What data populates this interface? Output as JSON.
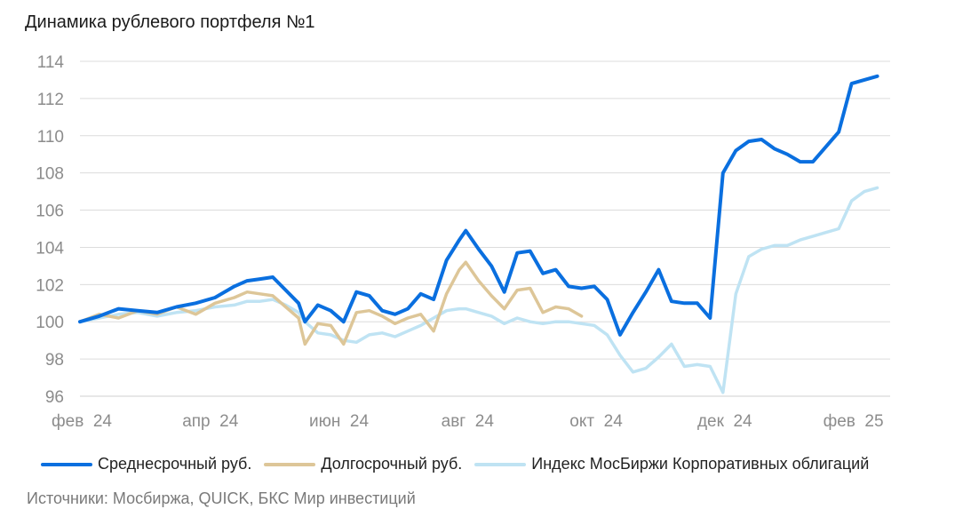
{
  "chart_data": {
    "type": "line",
    "title": "Динамика рублевого портфеля №1",
    "xlabel": "",
    "ylabel": "",
    "ylim": [
      96,
      114
    ],
    "yticks": [
      96,
      98,
      100,
      102,
      104,
      106,
      108,
      110,
      112,
      114
    ],
    "yticklabels": [
      "96",
      "98",
      "100",
      "102",
      "104",
      "106",
      "108",
      "110",
      "112",
      "114"
    ],
    "xlim": [
      0,
      12.6
    ],
    "xticks": [
      0,
      2,
      4,
      6,
      8,
      10,
      12
    ],
    "xticklabels": [
      "фев  24",
      "апр  24",
      "июн  24",
      "авг  24",
      "окт  24",
      "дек  24",
      "фев  25"
    ],
    "grid": true,
    "legend_position": "bottom",
    "series": [
      {
        "name": "Среднесрочный руб.",
        "color": "#0a6fdf",
        "x": [
          0,
          0.3,
          0.6,
          0.9,
          1.2,
          1.5,
          1.8,
          2.1,
          2.4,
          2.6,
          2.8,
          3.0,
          3.2,
          3.4,
          3.5,
          3.7,
          3.9,
          4.1,
          4.3,
          4.5,
          4.7,
          4.9,
          5.1,
          5.3,
          5.5,
          5.7,
          5.9,
          6.0,
          6.2,
          6.4,
          6.6,
          6.8,
          7.0,
          7.2,
          7.4,
          7.6,
          7.8,
          8.0,
          8.2,
          8.4,
          8.6,
          8.8,
          9.0,
          9.2,
          9.4,
          9.6,
          9.8,
          10.0,
          10.2,
          10.4,
          10.6,
          10.8,
          11.0,
          11.2,
          11.4,
          11.6,
          11.8,
          12.0,
          12.2,
          12.4
        ],
        "values": [
          100.0,
          100.3,
          100.7,
          100.6,
          100.5,
          100.8,
          101.0,
          101.3,
          101.9,
          102.2,
          102.3,
          102.4,
          101.7,
          101.0,
          100.0,
          100.9,
          100.6,
          100.0,
          101.6,
          101.4,
          100.6,
          100.4,
          100.7,
          101.5,
          101.2,
          103.3,
          104.4,
          104.9,
          103.9,
          103.0,
          101.6,
          103.7,
          103.8,
          102.6,
          102.8,
          101.9,
          101.8,
          101.9,
          101.2,
          99.3,
          100.5,
          101.6,
          102.8,
          101.1,
          101.0,
          101.0,
          100.2,
          108.0,
          109.2,
          109.7,
          109.8,
          109.3,
          109.0,
          108.6,
          108.6,
          109.4,
          110.2,
          112.8,
          113.0,
          113.2
        ],
        "values_note": "read off gridlines"
      },
      {
        "name": "Долгосрочный руб.",
        "color": "#ddc698",
        "x": [
          0,
          0.3,
          0.6,
          0.9,
          1.2,
          1.5,
          1.8,
          2.1,
          2.4,
          2.6,
          2.8,
          3.0,
          3.2,
          3.4,
          3.5,
          3.7,
          3.9,
          4.1,
          4.3,
          4.5,
          4.7,
          4.9,
          5.1,
          5.3,
          5.5,
          5.7,
          5.9,
          6.0,
          6.2,
          6.4,
          6.6,
          6.8,
          7.0,
          7.2,
          7.4,
          7.6,
          7.8
        ],
        "values": [
          100.0,
          100.4,
          100.2,
          100.6,
          100.4,
          100.8,
          100.4,
          101.0,
          101.3,
          101.6,
          101.5,
          101.4,
          100.8,
          100.2,
          98.8,
          99.9,
          99.8,
          98.8,
          100.5,
          100.6,
          100.3,
          99.9,
          100.2,
          100.4,
          99.5,
          101.5,
          102.8,
          103.2,
          102.2,
          101.4,
          100.7,
          101.7,
          101.8,
          100.5,
          100.8,
          100.7,
          100.3
        ]
      },
      {
        "name": "Индекс МосБиржи Корпоративных облигаций",
        "color": "#bfe3f3",
        "x": [
          0,
          0.3,
          0.6,
          0.9,
          1.2,
          1.5,
          1.8,
          2.1,
          2.4,
          2.6,
          2.8,
          3.0,
          3.2,
          3.4,
          3.5,
          3.7,
          3.9,
          4.1,
          4.3,
          4.5,
          4.7,
          4.9,
          5.1,
          5.3,
          5.5,
          5.7,
          5.9,
          6.0,
          6.2,
          6.4,
          6.6,
          6.8,
          7.0,
          7.2,
          7.4,
          7.6,
          7.8,
          8.0,
          8.2,
          8.4,
          8.6,
          8.8,
          9.0,
          9.2,
          9.4,
          9.6,
          9.8,
          10.0,
          10.2,
          10.4,
          10.6,
          10.8,
          11.0,
          11.2,
          11.4,
          11.6,
          11.8,
          12.0,
          12.2,
          12.4
        ],
        "values": [
          100.0,
          100.2,
          100.4,
          100.5,
          100.3,
          100.5,
          100.6,
          100.8,
          100.9,
          101.1,
          101.1,
          101.2,
          100.9,
          100.5,
          100.0,
          99.4,
          99.3,
          99.0,
          98.9,
          99.3,
          99.4,
          99.2,
          99.5,
          99.8,
          100.2,
          100.6,
          100.7,
          100.7,
          100.5,
          100.3,
          99.9,
          100.2,
          100.0,
          99.9,
          100.0,
          100.0,
          99.9,
          99.8,
          99.3,
          98.2,
          97.3,
          97.5,
          98.1,
          98.8,
          97.6,
          97.7,
          97.6,
          96.2,
          101.5,
          103.5,
          103.9,
          104.1,
          104.1,
          104.4,
          104.6,
          104.8,
          105.0,
          106.5,
          107.0,
          107.2
        ]
      }
    ]
  },
  "legend": {
    "items": [
      {
        "label": "Среднесрочный руб.",
        "color": "#0a6fdf"
      },
      {
        "label": "Долгосрочный руб.",
        "color": "#ddc698"
      },
      {
        "label": "Индекс МосБиржи Корпоративных облигаций",
        "color": "#bfe3f3"
      }
    ]
  },
  "source": "Источники: Мосбиржа, QUICK, БКС Мир инвестиций"
}
